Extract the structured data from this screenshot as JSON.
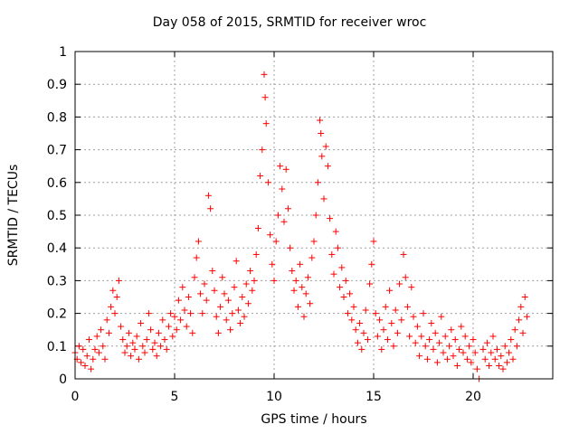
{
  "chart_data": {
    "type": "scatter",
    "title": "Day 058 of 2015, SRMTID for receiver wroc",
    "xlabel": "GPS time / hours",
    "ylabel": "SRMTID / TECUs",
    "xlim": [
      0,
      24
    ],
    "ylim": [
      0,
      1
    ],
    "xticks": [
      0,
      5,
      10,
      15,
      20
    ],
    "xtick_labels": [
      "0",
      "5",
      "10",
      "15",
      "20"
    ],
    "yticks": [
      0,
      0.1,
      0.2,
      0.3,
      0.4,
      0.5,
      0.6,
      0.7,
      0.8,
      0.9,
      1
    ],
    "ytick_labels": [
      "0",
      "0.1",
      "0.2",
      "0.3",
      "0.4",
      "0.5",
      "0.6",
      "0.7",
      "0.8",
      "0.9",
      "1"
    ],
    "grid": true,
    "marker": "+",
    "color": "#ff0000",
    "series": [
      {
        "name": "SRMTID",
        "points": [
          [
            0.0,
            0.08
          ],
          [
            0.1,
            0.06
          ],
          [
            0.2,
            0.1
          ],
          [
            0.3,
            0.05
          ],
          [
            0.4,
            0.09
          ],
          [
            0.5,
            0.04
          ],
          [
            0.6,
            0.07
          ],
          [
            0.7,
            0.12
          ],
          [
            0.8,
            0.03
          ],
          [
            0.9,
            0.06
          ],
          [
            1.0,
            0.09
          ],
          [
            1.1,
            0.13
          ],
          [
            1.2,
            0.08
          ],
          [
            1.3,
            0.15
          ],
          [
            1.4,
            0.1
          ],
          [
            1.5,
            0.06
          ],
          [
            1.6,
            0.18
          ],
          [
            1.7,
            0.14
          ],
          [
            1.8,
            0.22
          ],
          [
            1.9,
            0.27
          ],
          [
            2.0,
            0.2
          ],
          [
            2.1,
            0.25
          ],
          [
            2.2,
            0.3
          ],
          [
            2.3,
            0.16
          ],
          [
            2.4,
            0.12
          ],
          [
            2.5,
            0.08
          ],
          [
            2.6,
            0.1
          ],
          [
            2.7,
            0.14
          ],
          [
            2.8,
            0.07
          ],
          [
            2.9,
            0.11
          ],
          [
            3.0,
            0.09
          ],
          [
            3.1,
            0.13
          ],
          [
            3.2,
            0.06
          ],
          [
            3.3,
            0.17
          ],
          [
            3.4,
            0.1
          ],
          [
            3.5,
            0.08
          ],
          [
            3.6,
            0.12
          ],
          [
            3.7,
            0.2
          ],
          [
            3.8,
            0.15
          ],
          [
            3.9,
            0.09
          ],
          [
            4.0,
            0.11
          ],
          [
            4.1,
            0.07
          ],
          [
            4.2,
            0.14
          ],
          [
            4.3,
            0.1
          ],
          [
            4.4,
            0.18
          ],
          [
            4.5,
            0.12
          ],
          [
            4.6,
            0.09
          ],
          [
            4.7,
            0.16
          ],
          [
            4.8,
            0.2
          ],
          [
            4.9,
            0.13
          ],
          [
            5.0,
            0.19
          ],
          [
            5.1,
            0.15
          ],
          [
            5.2,
            0.24
          ],
          [
            5.3,
            0.18
          ],
          [
            5.4,
            0.28
          ],
          [
            5.5,
            0.21
          ],
          [
            5.6,
            0.16
          ],
          [
            5.7,
            0.25
          ],
          [
            5.8,
            0.2
          ],
          [
            5.9,
            0.14
          ],
          [
            6.0,
            0.31
          ],
          [
            6.1,
            0.37
          ],
          [
            6.2,
            0.42
          ],
          [
            6.3,
            0.26
          ],
          [
            6.4,
            0.2
          ],
          [
            6.5,
            0.29
          ],
          [
            6.6,
            0.24
          ],
          [
            6.7,
            0.56
          ],
          [
            6.8,
            0.52
          ],
          [
            6.9,
            0.33
          ],
          [
            7.0,
            0.27
          ],
          [
            7.1,
            0.19
          ],
          [
            7.2,
            0.14
          ],
          [
            7.3,
            0.22
          ],
          [
            7.4,
            0.31
          ],
          [
            7.5,
            0.26
          ],
          [
            7.6,
            0.18
          ],
          [
            7.7,
            0.24
          ],
          [
            7.8,
            0.15
          ],
          [
            7.9,
            0.2
          ],
          [
            8.0,
            0.28
          ],
          [
            8.1,
            0.36
          ],
          [
            8.2,
            0.21
          ],
          [
            8.3,
            0.17
          ],
          [
            8.4,
            0.25
          ],
          [
            8.5,
            0.19
          ],
          [
            8.6,
            0.29
          ],
          [
            8.7,
            0.23
          ],
          [
            8.8,
            0.33
          ],
          [
            8.9,
            0.27
          ],
          [
            9.0,
            0.3
          ],
          [
            9.1,
            0.38
          ],
          [
            9.2,
            0.46
          ],
          [
            9.3,
            0.62
          ],
          [
            9.4,
            0.7
          ],
          [
            9.5,
            0.93
          ],
          [
            9.55,
            0.86
          ],
          [
            9.6,
            0.78
          ],
          [
            9.7,
            0.6
          ],
          [
            9.8,
            0.44
          ],
          [
            9.9,
            0.35
          ],
          [
            10.0,
            0.3
          ],
          [
            10.1,
            0.42
          ],
          [
            10.2,
            0.5
          ],
          [
            10.3,
            0.65
          ],
          [
            10.4,
            0.58
          ],
          [
            10.5,
            0.48
          ],
          [
            10.6,
            0.64
          ],
          [
            10.7,
            0.52
          ],
          [
            10.8,
            0.4
          ],
          [
            10.9,
            0.33
          ],
          [
            11.0,
            0.27
          ],
          [
            11.1,
            0.3
          ],
          [
            11.2,
            0.22
          ],
          [
            11.3,
            0.35
          ],
          [
            11.4,
            0.28
          ],
          [
            11.5,
            0.19
          ],
          [
            11.6,
            0.26
          ],
          [
            11.7,
            0.31
          ],
          [
            11.8,
            0.23
          ],
          [
            11.9,
            0.37
          ],
          [
            12.0,
            0.42
          ],
          [
            12.1,
            0.5
          ],
          [
            12.2,
            0.6
          ],
          [
            12.3,
            0.79
          ],
          [
            12.35,
            0.75
          ],
          [
            12.4,
            0.68
          ],
          [
            12.5,
            0.55
          ],
          [
            12.6,
            0.71
          ],
          [
            12.7,
            0.65
          ],
          [
            12.8,
            0.49
          ],
          [
            12.9,
            0.38
          ],
          [
            13.0,
            0.32
          ],
          [
            13.1,
            0.45
          ],
          [
            13.2,
            0.4
          ],
          [
            13.3,
            0.28
          ],
          [
            13.4,
            0.34
          ],
          [
            13.5,
            0.25
          ],
          [
            13.6,
            0.3
          ],
          [
            13.7,
            0.2
          ],
          [
            13.8,
            0.26
          ],
          [
            13.9,
            0.18
          ],
          [
            14.0,
            0.22
          ],
          [
            14.1,
            0.15
          ],
          [
            14.2,
            0.11
          ],
          [
            14.3,
            0.17
          ],
          [
            14.4,
            0.09
          ],
          [
            14.5,
            0.14
          ],
          [
            14.6,
            0.21
          ],
          [
            14.7,
            0.12
          ],
          [
            14.8,
            0.29
          ],
          [
            14.9,
            0.35
          ],
          [
            15.0,
            0.42
          ],
          [
            15.1,
            0.2
          ],
          [
            15.2,
            0.13
          ],
          [
            15.3,
            0.18
          ],
          [
            15.4,
            0.09
          ],
          [
            15.5,
            0.15
          ],
          [
            15.6,
            0.22
          ],
          [
            15.7,
            0.12
          ],
          [
            15.8,
            0.27
          ],
          [
            15.9,
            0.17
          ],
          [
            16.0,
            0.1
          ],
          [
            16.1,
            0.21
          ],
          [
            16.2,
            0.14
          ],
          [
            16.3,
            0.29
          ],
          [
            16.4,
            0.18
          ],
          [
            16.5,
            0.38
          ],
          [
            16.6,
            0.31
          ],
          [
            16.7,
            0.22
          ],
          [
            16.8,
            0.13
          ],
          [
            16.9,
            0.28
          ],
          [
            17.0,
            0.19
          ],
          [
            17.1,
            0.11
          ],
          [
            17.2,
            0.16
          ],
          [
            17.3,
            0.07
          ],
          [
            17.4,
            0.13
          ],
          [
            17.5,
            0.2
          ],
          [
            17.6,
            0.1
          ],
          [
            17.7,
            0.06
          ],
          [
            17.8,
            0.12
          ],
          [
            17.9,
            0.17
          ],
          [
            18.0,
            0.09
          ],
          [
            18.1,
            0.14
          ],
          [
            18.2,
            0.05
          ],
          [
            18.3,
            0.11
          ],
          [
            18.4,
            0.19
          ],
          [
            18.5,
            0.08
          ],
          [
            18.6,
            0.13
          ],
          [
            18.7,
            0.06
          ],
          [
            18.8,
            0.1
          ],
          [
            18.9,
            0.15
          ],
          [
            19.0,
            0.07
          ],
          [
            19.1,
            0.12
          ],
          [
            19.2,
            0.04
          ],
          [
            19.3,
            0.09
          ],
          [
            19.4,
            0.16
          ],
          [
            19.5,
            0.08
          ],
          [
            19.6,
            0.13
          ],
          [
            19.7,
            0.06
          ],
          [
            19.8,
            0.1
          ],
          [
            19.9,
            0.05
          ],
          [
            20.0,
            0.12
          ],
          [
            20.1,
            0.08
          ],
          [
            20.2,
            0.03
          ],
          [
            20.3,
            0.0
          ],
          [
            20.5,
            0.09
          ],
          [
            20.6,
            0.06
          ],
          [
            20.7,
            0.11
          ],
          [
            20.8,
            0.04
          ],
          [
            20.9,
            0.08
          ],
          [
            21.0,
            0.13
          ],
          [
            21.1,
            0.06
          ],
          [
            21.2,
            0.09
          ],
          [
            21.3,
            0.04
          ],
          [
            21.4,
            0.07
          ],
          [
            21.5,
            0.03
          ],
          [
            21.6,
            0.1
          ],
          [
            21.7,
            0.05
          ],
          [
            21.8,
            0.08
          ],
          [
            21.9,
            0.12
          ],
          [
            22.0,
            0.06
          ],
          [
            22.1,
            0.15
          ],
          [
            22.2,
            0.1
          ],
          [
            22.3,
            0.18
          ],
          [
            22.4,
            0.22
          ],
          [
            22.5,
            0.14
          ],
          [
            22.6,
            0.25
          ],
          [
            22.7,
            0.19
          ]
        ]
      }
    ]
  }
}
